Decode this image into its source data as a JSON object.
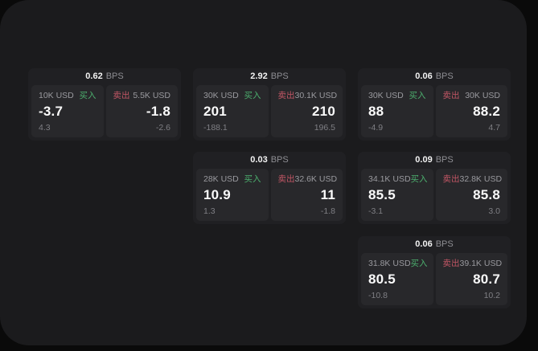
{
  "labels": {
    "buy": "买入",
    "sell": "卖出",
    "unit": "BPS"
  },
  "colors": {
    "buy": "#4caf6e",
    "sell": "#c25665",
    "panel": "#1b1b1d",
    "card": "#202023",
    "tile": "#28282b"
  },
  "cards": [
    {
      "bps": "0.62",
      "buy": {
        "size": "10K USD",
        "price": "-3.7",
        "change": "4.3"
      },
      "sell": {
        "size": "5.5K USD",
        "price": "-1.8",
        "change": "-2.6"
      }
    },
    {
      "bps": "2.92",
      "buy": {
        "size": "30K USD",
        "price": "201",
        "change": "-188.1"
      },
      "sell": {
        "size": "30.1K USD",
        "price": "210",
        "change": "196.5"
      }
    },
    {
      "bps": "0.06",
      "buy": {
        "size": "30K USD",
        "price": "88",
        "change": "-4.9"
      },
      "sell": {
        "size": "30K USD",
        "price": "88.2",
        "change": "4.7"
      }
    },
    {
      "bps": "0.03",
      "buy": {
        "size": "28K USD",
        "price": "10.9",
        "change": "1.3"
      },
      "sell": {
        "size": "32.6K USD",
        "price": "11",
        "change": "-1.8"
      }
    },
    {
      "bps": "0.09",
      "buy": {
        "size": "34.1K USD",
        "price": "85.5",
        "change": "-3.1"
      },
      "sell": {
        "size": "32.8K USD",
        "price": "85.8",
        "change": "3.0"
      }
    },
    {
      "bps": "0.06",
      "buy": {
        "size": "31.8K USD",
        "price": "80.5",
        "change": "-10.8"
      },
      "sell": {
        "size": "39.1K USD",
        "price": "80.7",
        "change": "10.2"
      }
    }
  ]
}
